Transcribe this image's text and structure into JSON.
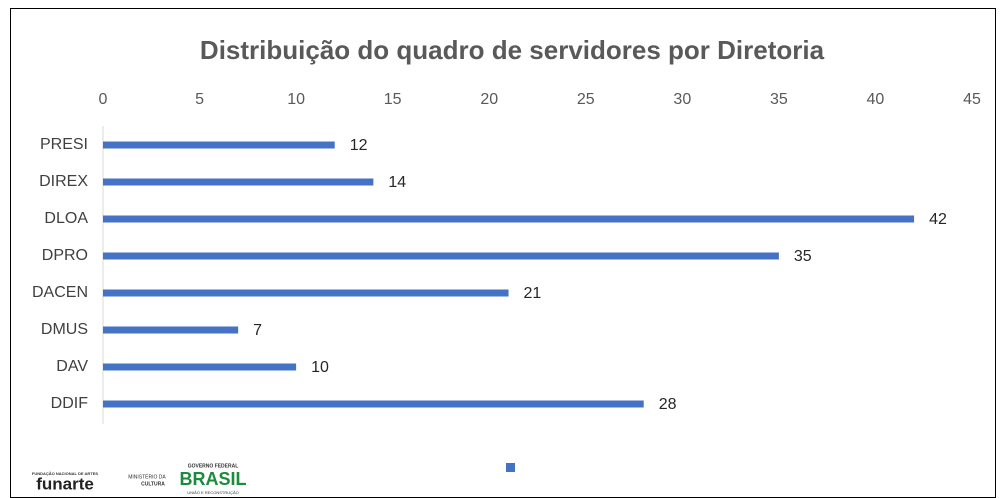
{
  "chart_data": {
    "type": "barh",
    "title": "Distribuição do quadro de servidores por Diretoria",
    "categories": [
      "PRESI",
      "DIREX",
      "DLOA",
      "DPRO",
      "DACEN",
      "DMUS",
      "DAV",
      "DDIF"
    ],
    "values": [
      12,
      14,
      42,
      35,
      21,
      7,
      10,
      28
    ],
    "color": "#4472c4",
    "xlim": [
      0,
      45
    ],
    "xticks": [
      0,
      5,
      10,
      15,
      20,
      25,
      30,
      35,
      40,
      45
    ],
    "grid": false
  },
  "logos": {
    "funarte_caption": "FUNDAÇÃO NACIONAL DE ARTES",
    "funarte": "funarte",
    "ministry": "MINISTÉRIO DA",
    "culture": "CULTURA",
    "government": "GOVERNO FEDERAL",
    "brasil": "BRASIL",
    "motto": "UNIÃO E RECONSTRUÇÃO"
  }
}
